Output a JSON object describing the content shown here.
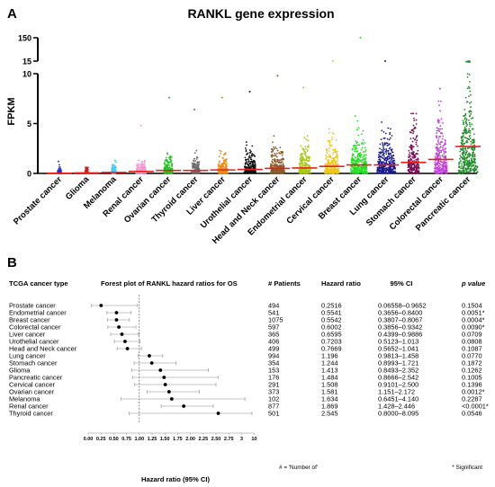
{
  "panel_a_label": "A",
  "panel_b_label": "B",
  "chart_data": [
    {
      "type": "scatter",
      "subtype": "dot strip plot with mean line",
      "title": "RANKL gene expression",
      "ylabel": "FPKM",
      "y_axis": {
        "segments": [
          [
            0,
            10
          ],
          [
            15,
            150
          ]
        ],
        "ticks": [
          0,
          5,
          10,
          15,
          150
        ]
      },
      "categories": [
        "Prostate cancer",
        "Glioma",
        "Melanoma",
        "Renal cancer",
        "Ovarian cancer",
        "Thyroid cancer",
        "Liver cancer",
        "Urothelial cancer",
        "Head and Neck cancer",
        "Endometrial cancer",
        "Cervical cancer",
        "Breast cancer",
        "Lung cancer",
        "Stomach cancer",
        "Colorectal cancer",
        "Pancreatic cancer"
      ],
      "colors": [
        "#1f2fd6",
        "#cc2222",
        "#56c6f0",
        "#f39ad0",
        "#22c522",
        "#6b6b6b",
        "#ef8a1a",
        "#111111",
        "#8a5a2b",
        "#a8c81a",
        "#f0c41a",
        "#22dd22",
        "#1a1a8c",
        "#7a0d55",
        "#c040d8",
        "#1f8a2a"
      ],
      "means": [
        0.02,
        0.05,
        0.1,
        0.2,
        0.3,
        0.3,
        0.35,
        0.4,
        0.5,
        0.55,
        0.7,
        0.85,
        0.85,
        1.1,
        1.4,
        2.7
      ],
      "max_values": [
        1.2,
        0.6,
        1.3,
        4.8,
        7.6,
        6.4,
        7.6,
        8.2,
        9.8,
        8.6,
        15,
        150,
        15,
        6,
        8.5,
        15
      ],
      "spread_level": [
        0.6,
        0.4,
        0.9,
        2.8,
        2.5,
        2.2,
        2.8,
        3.5,
        4.5,
        3.5,
        4.5,
        5.5,
        6,
        3.5,
        4,
        6.5
      ]
    },
    {
      "type": "forest",
      "title": "Forest plot of RANKL hazard ratios for OS",
      "xlabel": "Hazard ratio (95% CI)",
      "x_ticks": [
        "0.00",
        "0.25",
        "0.50",
        "0.75",
        "1.00",
        "1.25",
        "1.50",
        "1.75",
        "2.00",
        "2.25",
        "2.50",
        "2.75",
        "3",
        "10"
      ],
      "reference_line": 1,
      "rows": [
        {
          "type": "Prostate cancer",
          "n": "494",
          "hr": 0.2516,
          "hr_text": "0.2516",
          "lo": 0.06558,
          "hi": 0.9652,
          "ci": "0.06558–0.9652",
          "p": "0.1504"
        },
        {
          "type": "Endometrial cancer",
          "n": "541",
          "hr": 0.5541,
          "hr_text": "0.5541",
          "lo": 0.3656,
          "hi": 0.84,
          "ci": "0.3656–0.8400",
          "p": "0.0051*"
        },
        {
          "type": "Breast cancer",
          "n": "1075",
          "hr": 0.5542,
          "hr_text": "0.5542",
          "lo": 0.3807,
          "hi": 0.8067,
          "ci": "0.3807–0.8067",
          "p": "0.0004*"
        },
        {
          "type": "Colorectal cancer",
          "n": "597",
          "hr": 0.6002,
          "hr_text": "0.6002",
          "lo": 0.3856,
          "hi": 0.9342,
          "ci": "0.3856–0.9342",
          "p": "0.0090*"
        },
        {
          "type": "Liver cancer",
          "n": "365",
          "hr": 0.6595,
          "hr_text": "0.6595",
          "lo": 0.4399,
          "hi": 0.9886,
          "ci": "0.4399–0.9886",
          "p": "0.0709"
        },
        {
          "type": "Urothelial cancer",
          "n": "406",
          "hr": 0.7203,
          "hr_text": "0.7203",
          "lo": 0.5123,
          "hi": 1.013,
          "ci": "0.5123–1.013",
          "p": "0.0808"
        },
        {
          "type": "Head and Neck cancer",
          "n": "499",
          "hr": 0.7669,
          "hr_text": "0.7669",
          "lo": 0.5652,
          "hi": 1.041,
          "ci": "0.5652–1.041",
          "p": "0.1087"
        },
        {
          "type": "Lung cancer",
          "n": "994",
          "hr": 1.196,
          "hr_text": "1.196",
          "lo": 0.9813,
          "hi": 1.458,
          "ci": "0.9813–1.458",
          "p": "0.0770"
        },
        {
          "type": "Stomach cancer",
          "n": "354",
          "hr": 1.244,
          "hr_text": "1.244",
          "lo": 0.8993,
          "hi": 1.721,
          "ci": "0.8993–1.721",
          "p": "0.1872"
        },
        {
          "type": "Glioma",
          "n": "153",
          "hr": 1.413,
          "hr_text": "1.413",
          "lo": 0.8493,
          "hi": 2.352,
          "ci": "0.8493–2.352",
          "p": "0.1262"
        },
        {
          "type": "Pancreatic cancer",
          "n": "176",
          "hr": 1.484,
          "hr_text": "1.484",
          "lo": 0.8666,
          "hi": 2.542,
          "ci": "0.8666–2.542",
          "p": "0.1005"
        },
        {
          "type": "Cervical cancer",
          "n": "291",
          "hr": 1.508,
          "hr_text": "1.508",
          "lo": 0.9101,
          "hi": 2.5,
          "ci": "0.9101–2.500",
          "p": "0.1396"
        },
        {
          "type": "Ovarian cancer",
          "n": "373",
          "hr": 1.581,
          "hr_text": "1.581",
          "lo": 1.151,
          "hi": 2.172,
          "ci": "1.151–2.172",
          "p": "0.0012*"
        },
        {
          "type": "Melanoma",
          "n": "102",
          "hr": 1.634,
          "hr_text": "1.634",
          "lo": 0.6451,
          "hi": 4.14,
          "ci": "0.6451–4.140",
          "p": "0.2287"
        },
        {
          "type": "Renal cancer",
          "n": "877",
          "hr": 1.869,
          "hr_text": "1.869",
          "lo": 1.428,
          "hi": 2.446,
          "ci": "1.428–2.446",
          "p": "<0.0001*"
        },
        {
          "type": "Thyroid cancer",
          "n": "501",
          "hr": 2.545,
          "hr_text": "2.545",
          "lo": 0.8,
          "hi": 8.095,
          "ci": "0.8000–8.095",
          "p": "0.0546"
        }
      ]
    }
  ],
  "table": {
    "col_type": "TCGA cancer type",
    "col_plot": "Forest plot of RANKL hazard ratios for OS",
    "col_n": "# Patients",
    "col_hr": "Hazard ratio",
    "col_ci": "95% CI",
    "col_p": "p value"
  },
  "footnote_left": "# = 'Number of'",
  "footnote_right": "* Significant"
}
